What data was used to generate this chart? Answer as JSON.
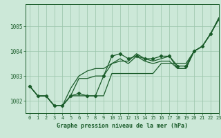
{
  "title": "Graphe pression niveau de la mer (hPa)",
  "background_color": "#cce8d8",
  "grid_color": "#99c4aa",
  "line_color": "#1a5c2a",
  "xlim": [
    -0.5,
    23
  ],
  "ylim": [
    1001.5,
    1005.9
  ],
  "yticks": [
    1002,
    1003,
    1004,
    1005
  ],
  "xticks": [
    0,
    1,
    2,
    3,
    4,
    5,
    6,
    7,
    8,
    9,
    10,
    11,
    12,
    13,
    14,
    15,
    16,
    17,
    18,
    19,
    20,
    21,
    22,
    23
  ],
  "series": [
    [
      1002.6,
      1002.2,
      1002.2,
      1001.8,
      1001.8,
      1002.2,
      1002.3,
      1002.2,
      1002.2,
      1003.0,
      1003.8,
      1003.9,
      1003.7,
      1003.8,
      1003.7,
      1003.7,
      1003.8,
      1003.8,
      1003.4,
      1003.4,
      1004.0,
      1004.2,
      1004.7,
      1005.3
    ],
    [
      1002.6,
      1002.2,
      1002.2,
      1001.8,
      1001.8,
      1002.2,
      1002.9,
      1002.9,
      1003.0,
      1003.0,
      1003.5,
      1003.7,
      1003.5,
      1003.8,
      1003.6,
      1003.5,
      1003.6,
      1003.6,
      1003.3,
      1003.3,
      1004.0,
      1004.2,
      1004.7,
      1005.3
    ],
    [
      1002.6,
      1002.2,
      1002.2,
      1001.8,
      1001.8,
      1002.5,
      1003.0,
      1003.2,
      1003.3,
      1003.3,
      1003.5,
      1003.6,
      1003.6,
      1003.9,
      1003.7,
      1003.6,
      1003.7,
      1003.8,
      1003.3,
      1003.3,
      1004.0,
      1004.2,
      1004.7,
      1005.35
    ],
    [
      1002.6,
      1002.2,
      1002.2,
      1001.8,
      1001.8,
      1002.2,
      1002.2,
      1002.2,
      1002.2,
      1002.2,
      1003.1,
      1003.1,
      1003.1,
      1003.1,
      1003.1,
      1003.1,
      1003.5,
      1003.5,
      1003.5,
      1003.5,
      1004.0,
      1004.2,
      1004.7,
      1005.3
    ]
  ],
  "marker_series": 0,
  "marker": "D",
  "markersize": 2.2,
  "linewidth": 0.9,
  "xlabel_fontsize": 6.0,
  "tick_fontsize": 5.0,
  "ytick_fontsize": 5.5
}
